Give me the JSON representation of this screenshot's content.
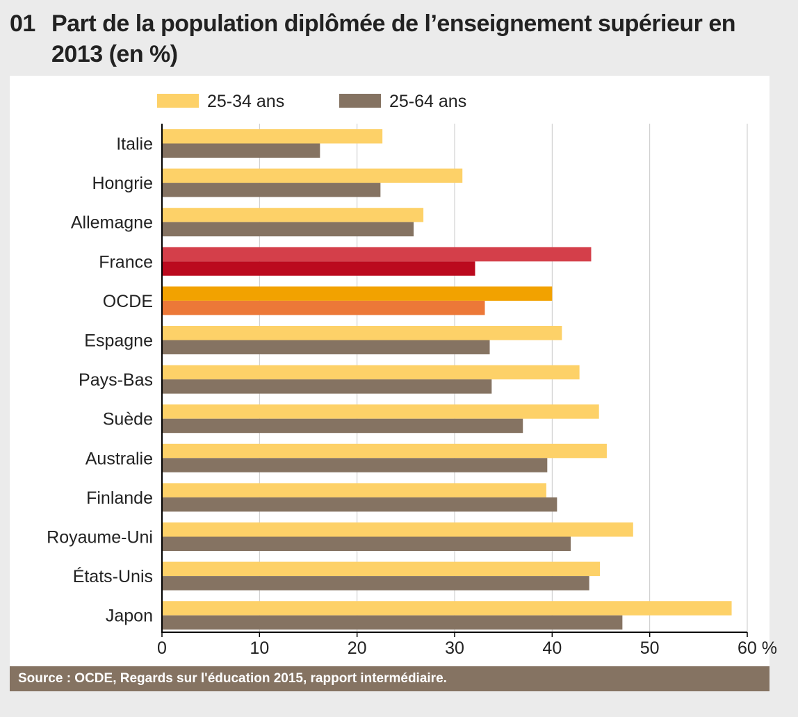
{
  "figure": {
    "number": "01",
    "title": "Part de la population diplômée de l’enseignement supérieur en 2013 (en %)",
    "source": "Source : OCDE, Regards sur l'éducation 2015, rapport intermédiaire."
  },
  "colors": {
    "young": "#fdd168",
    "all": "#857362",
    "france_young": "#d43f4a",
    "france_all": "#bb0a1e",
    "ocde_young": "#f2a200",
    "ocde_all": "#ec7838",
    "grid": "#c8c8c8",
    "axis": "#000000"
  },
  "chart_data": {
    "type": "bar",
    "orientation": "horizontal",
    "title": "Part de la population diplômée de l’enseignement supérieur en 2013 (en %)",
    "xlabel": "",
    "ylabel": "",
    "unit": "%",
    "xlim": [
      0,
      60
    ],
    "xticks": [
      0,
      10,
      20,
      30,
      40,
      50,
      60
    ],
    "xtick_labels": [
      "0",
      "10",
      "20",
      "30",
      "40",
      "50",
      "60 %"
    ],
    "grid": true,
    "legend_position": "top",
    "categories": [
      "Italie",
      "Hongrie",
      "Allemagne",
      "France",
      "OCDE",
      "Espagne",
      "Pays-Bas",
      "Suède",
      "Australie",
      "Finlande",
      "Royaume-Uni",
      "États-Unis",
      "Japon"
    ],
    "highlight": {
      "France": [
        "france_young",
        "france_all"
      ],
      "OCDE": [
        "ocde_young",
        "ocde_all"
      ]
    },
    "series": [
      {
        "name": "25-34 ans",
        "color_key": "young",
        "values": [
          22.6,
          30.8,
          26.8,
          44.0,
          40.0,
          41.0,
          42.8,
          44.8,
          45.6,
          39.4,
          48.3,
          44.9,
          58.4
        ]
      },
      {
        "name": "25-64 ans",
        "color_key": "all",
        "values": [
          16.2,
          22.4,
          25.8,
          32.1,
          33.1,
          33.6,
          33.8,
          37.0,
          39.5,
          40.5,
          41.9,
          43.8,
          47.2
        ]
      }
    ]
  }
}
